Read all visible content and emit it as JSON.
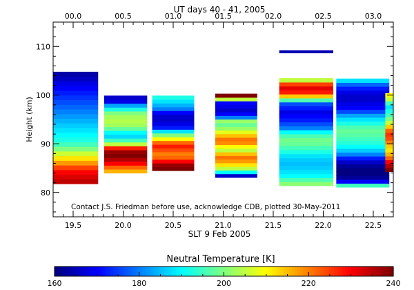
{
  "chart_data": {
    "type": "heatmap",
    "top_title": "UT days 40 - 41, 2005",
    "xlabel": "SLT 9 Feb 2005",
    "ylabel": "Height (km)",
    "xlim": [
      19.3,
      22.7
    ],
    "ylim": [
      75,
      115
    ],
    "x_ticks": [
      19.5,
      20.0,
      20.5,
      21.0,
      21.5,
      22.0,
      22.5
    ],
    "x_tick_labels": [
      "19.5",
      "20.0",
      "20.5",
      "21.0",
      "21.5",
      "22.0",
      "22.5"
    ],
    "y_ticks": [
      80,
      90,
      100,
      110
    ],
    "y_tick_labels": [
      "80",
      "90",
      "100",
      "110"
    ],
    "top_ticks": [
      19.5,
      20.0,
      20.5,
      21.0,
      21.5,
      22.0,
      22.5
    ],
    "top_tick_labels": [
      "00.0",
      "00.5",
      "01.0",
      "01.5",
      "02.0",
      "02.5",
      "03.0"
    ],
    "annotation": "Contact J.S. Friedman before use, acknowledge CDB, plotted 30-May-2011",
    "colorbar": {
      "label": "Neutral Temperature [K]",
      "min": 160,
      "max": 240,
      "ticks": [
        160,
        180,
        200,
        220,
        240
      ],
      "tick_labels": [
        "160",
        "180",
        "200",
        "220",
        "240"
      ]
    },
    "profiles": [
      {
        "x0": 19.3,
        "x1": 19.75,
        "bottom": 81.8,
        "top": 104.8,
        "temps": [
          235,
          233,
          230,
          225,
          218,
          212,
          206,
          200,
          195,
          192,
          190,
          188,
          186,
          184,
          182,
          180,
          178,
          176,
          174,
          172,
          170,
          168,
          165,
          163
        ]
      },
      {
        "x0": 19.81,
        "x1": 20.24,
        "bottom": 84.0,
        "top": 99.9,
        "temps": [
          216,
          222,
          230,
          236,
          240,
          238,
          228,
          205,
          195,
          187,
          190,
          198,
          203,
          204,
          203,
          200,
          192,
          183,
          168,
          166
        ]
      },
      {
        "x0": 20.29,
        "x1": 20.71,
        "bottom": 84.5,
        "top": 99.9,
        "temps": [
          240,
          238,
          230,
          222,
          220,
          224,
          228,
          222,
          210,
          200,
          188,
          172,
          168,
          166,
          166,
          170,
          180,
          184,
          188,
          192
        ]
      },
      {
        "x0": 20.92,
        "x1": 21.34,
        "bottom": 83.1,
        "top": 100.3,
        "temps": [
          166,
          190,
          205,
          212,
          218,
          221,
          215,
          205,
          210,
          219,
          221,
          215,
          208,
          202,
          198,
          202,
          180,
          170,
          166,
          168,
          170,
          205,
          240
        ]
      },
      {
        "x0": 21.56,
        "x1": 22.1,
        "bottom": 81.4,
        "top": 103.5,
        "temps": [
          201,
          196,
          190,
          188,
          186,
          185,
          186,
          188,
          192,
          195,
          198,
          199,
          196,
          190,
          180,
          176,
          172,
          170,
          168,
          172,
          176,
          196,
          214,
          228,
          232,
          225,
          205
        ]
      },
      {
        "x0": 22.13,
        "x1": 22.66,
        "bottom": 81.1,
        "top": 103.4,
        "temps": [
          195,
          170,
          162,
          160,
          160,
          162,
          166,
          172,
          180,
          186,
          190,
          193,
          195,
          197,
          198,
          196,
          192,
          188,
          183,
          176,
          170,
          168,
          166,
          166,
          168,
          172,
          178,
          188
        ]
      },
      {
        "x0": 22.62,
        "x1": 22.7,
        "bottom": 84.3,
        "top": 100.4,
        "temps": [
          240,
          236,
          230,
          222,
          216,
          212,
          214,
          220,
          224,
          226,
          222,
          214,
          206,
          200,
          195,
          192,
          188,
          195,
          205,
          210
        ]
      }
    ],
    "bars": [
      {
        "x0": 21.56,
        "x1": 22.1,
        "bottom": 108.6,
        "top": 109.2,
        "temp": 164
      }
    ]
  }
}
